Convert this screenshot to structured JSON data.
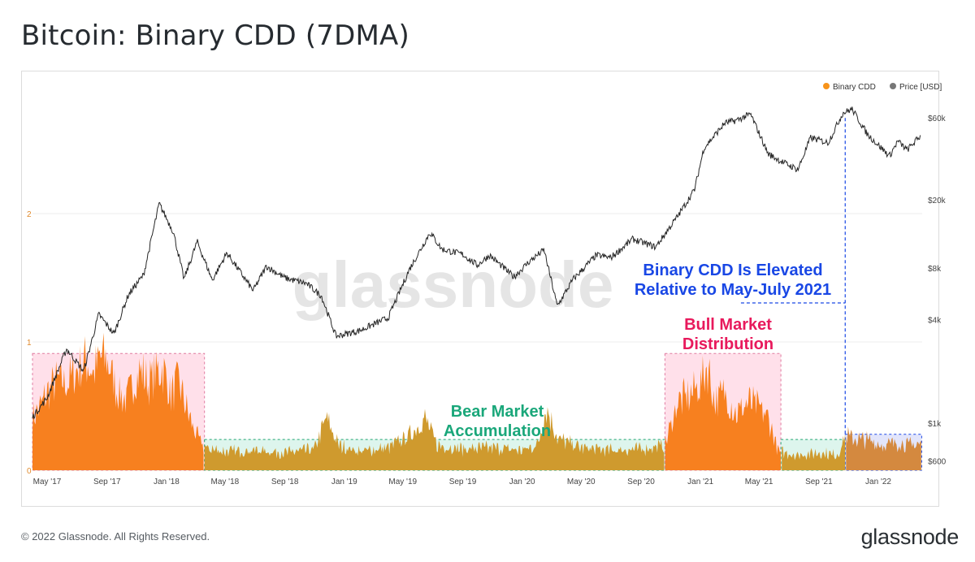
{
  "page": {
    "title": "Bitcoin: Binary CDD (7DMA)",
    "copyright": "© 2022 Glassnode. All Rights Reserved.",
    "brand": "glassnode"
  },
  "chart_data": {
    "type": "area",
    "title": "Bitcoin: Binary CDD (7DMA)",
    "legend": {
      "placement": "top-right",
      "entries": [
        {
          "name": "Binary CDD",
          "color": "#f7931a"
        },
        {
          "name": "Price [USD]",
          "color": "#777777"
        }
      ]
    },
    "grid": true,
    "x_range": [
      "2017-04-01",
      "2022-04-01"
    ],
    "x_ticks": [
      {
        "label": "May '17",
        "date": "2017-05-01"
      },
      {
        "label": "Sep '17",
        "date": "2017-09-01"
      },
      {
        "label": "Jan '18",
        "date": "2018-01-01"
      },
      {
        "label": "May '18",
        "date": "2018-05-01"
      },
      {
        "label": "Sep '18",
        "date": "2018-09-01"
      },
      {
        "label": "Jan '19",
        "date": "2019-01-01"
      },
      {
        "label": "May '19",
        "date": "2019-05-01"
      },
      {
        "label": "Sep '19",
        "date": "2019-09-01"
      },
      {
        "label": "Jan '20",
        "date": "2020-01-01"
      },
      {
        "label": "May '20",
        "date": "2020-05-01"
      },
      {
        "label": "Sep '20",
        "date": "2020-09-01"
      },
      {
        "label": "Jan '21",
        "date": "2021-01-01"
      },
      {
        "label": "May '21",
        "date": "2021-05-01"
      },
      {
        "label": "Sep '21",
        "date": "2021-09-01"
      },
      {
        "label": "Jan '22",
        "date": "2022-01-01"
      }
    ],
    "y_left": {
      "range": [
        0,
        2
      ],
      "ticks": [
        "0",
        "1",
        "2"
      ],
      "color": "#e0892b"
    },
    "y_right": {
      "scale": "log",
      "range": [
        530,
        90000
      ],
      "ticks": [
        {
          "label": "$600",
          "value": 600
        },
        {
          "label": "$1k",
          "value": 1000
        },
        {
          "label": "$4k",
          "value": 4000
        },
        {
          "label": "$8k",
          "value": 8000
        },
        {
          "label": "$20k",
          "value": 20000
        },
        {
          "label": "$60k",
          "value": 60000
        }
      ]
    },
    "series": [
      {
        "name": "Binary CDD",
        "color": "#f7931a",
        "axis": "left",
        "values": [
          [
            "2017-04-01",
            0.42
          ],
          [
            "2017-04-15",
            0.5
          ],
          [
            "2017-05-01",
            0.62
          ],
          [
            "2017-05-20",
            0.72
          ],
          [
            "2017-06-10",
            0.7
          ],
          [
            "2017-07-01",
            0.8
          ],
          [
            "2017-07-20",
            0.88
          ],
          [
            "2017-08-05",
            0.78
          ],
          [
            "2017-08-20",
            0.92
          ],
          [
            "2017-09-05",
            0.85
          ],
          [
            "2017-09-20",
            0.65
          ],
          [
            "2017-10-10",
            0.55
          ],
          [
            "2017-10-25",
            0.72
          ],
          [
            "2017-11-10",
            0.8
          ],
          [
            "2017-11-25",
            0.7
          ],
          [
            "2017-12-10",
            0.78
          ],
          [
            "2017-12-25",
            0.82
          ],
          [
            "2018-01-10",
            0.6
          ],
          [
            "2018-01-25",
            0.72
          ],
          [
            "2018-02-15",
            0.45
          ],
          [
            "2018-03-01",
            0.3
          ],
          [
            "2018-03-20",
            0.18
          ],
          [
            "2018-05-01",
            0.15
          ],
          [
            "2018-07-01",
            0.16
          ],
          [
            "2018-09-01",
            0.14
          ],
          [
            "2018-11-01",
            0.17
          ],
          [
            "2018-11-25",
            0.42
          ],
          [
            "2018-12-20",
            0.2
          ],
          [
            "2019-02-01",
            0.15
          ],
          [
            "2019-04-01",
            0.18
          ],
          [
            "2019-05-15",
            0.28
          ],
          [
            "2019-06-15",
            0.42
          ],
          [
            "2019-07-10",
            0.2
          ],
          [
            "2019-09-01",
            0.17
          ],
          [
            "2019-11-01",
            0.18
          ],
          [
            "2020-01-01",
            0.16
          ],
          [
            "2020-02-01",
            0.2
          ],
          [
            "2020-02-20",
            0.5
          ],
          [
            "2020-03-15",
            0.25
          ],
          [
            "2020-05-01",
            0.18
          ],
          [
            "2020-07-01",
            0.16
          ],
          [
            "2020-09-01",
            0.17
          ],
          [
            "2020-10-20",
            0.2
          ],
          [
            "2020-11-15",
            0.55
          ],
          [
            "2020-12-10",
            0.6
          ],
          [
            "2021-01-05",
            0.72
          ],
          [
            "2021-01-15",
            0.85
          ],
          [
            "2021-01-30",
            0.55
          ],
          [
            "2021-02-20",
            0.62
          ],
          [
            "2021-03-15",
            0.45
          ],
          [
            "2021-04-10",
            0.55
          ],
          [
            "2021-05-01",
            0.5
          ],
          [
            "2021-05-20",
            0.42
          ],
          [
            "2021-06-10",
            0.15
          ],
          [
            "2021-07-20",
            0.12
          ],
          [
            "2021-09-01",
            0.14
          ],
          [
            "2021-10-10",
            0.12
          ],
          [
            "2021-10-25",
            0.28
          ],
          [
            "2021-11-15",
            0.25
          ],
          [
            "2021-12-10",
            0.24
          ],
          [
            "2022-01-10",
            0.2
          ],
          [
            "2022-02-10",
            0.22
          ],
          [
            "2022-03-10",
            0.2
          ],
          [
            "2022-04-01",
            0.22
          ]
        ]
      },
      {
        "name": "Price [USD]",
        "color": "#262626",
        "axis": "right",
        "values": [
          [
            "2017-04-01",
            1080
          ],
          [
            "2017-05-01",
            1400
          ],
          [
            "2017-06-10",
            2700
          ],
          [
            "2017-07-15",
            2000
          ],
          [
            "2017-08-15",
            4300
          ],
          [
            "2017-09-15",
            3300
          ],
          [
            "2017-10-15",
            5600
          ],
          [
            "2017-11-15",
            7300
          ],
          [
            "2017-12-17",
            19000
          ],
          [
            "2018-01-15",
            13000
          ],
          [
            "2018-02-06",
            6900
          ],
          [
            "2018-03-05",
            11400
          ],
          [
            "2018-04-05",
            6800
          ],
          [
            "2018-05-05",
            9800
          ],
          [
            "2018-06-28",
            5900
          ],
          [
            "2018-07-25",
            8200
          ],
          [
            "2018-09-01",
            7000
          ],
          [
            "2018-10-15",
            6500
          ],
          [
            "2018-11-15",
            5500
          ],
          [
            "2018-12-15",
            3200
          ],
          [
            "2019-02-01",
            3450
          ],
          [
            "2019-04-01",
            4100
          ],
          [
            "2019-05-15",
            7900
          ],
          [
            "2019-06-26",
            12900
          ],
          [
            "2019-07-20",
            10300
          ],
          [
            "2019-09-01",
            9600
          ],
          [
            "2019-10-01",
            8300
          ],
          [
            "2019-10-26",
            9500
          ],
          [
            "2019-12-15",
            7100
          ],
          [
            "2020-01-15",
            8700
          ],
          [
            "2020-02-15",
            10200
          ],
          [
            "2020-03-13",
            4800
          ],
          [
            "2020-04-15",
            6900
          ],
          [
            "2020-06-01",
            9500
          ],
          [
            "2020-07-01",
            9200
          ],
          [
            "2020-08-15",
            11800
          ],
          [
            "2020-10-01",
            10600
          ],
          [
            "2020-11-15",
            16000
          ],
          [
            "2020-12-20",
            23000
          ],
          [
            "2021-01-08",
            40000
          ],
          [
            "2021-02-20",
            56000
          ],
          [
            "2021-03-15",
            58000
          ],
          [
            "2021-04-14",
            63000
          ],
          [
            "2021-05-20",
            37000
          ],
          [
            "2021-06-20",
            33000
          ],
          [
            "2021-07-20",
            30000
          ],
          [
            "2021-08-15",
            46000
          ],
          [
            "2021-09-20",
            43000
          ],
          [
            "2021-10-20",
            64000
          ],
          [
            "2021-11-08",
            67500
          ],
          [
            "2021-12-10",
            48000
          ],
          [
            "2022-01-24",
            36000
          ],
          [
            "2022-02-10",
            44000
          ],
          [
            "2022-03-01",
            39000
          ],
          [
            "2022-03-28",
            47000
          ]
        ]
      }
    ],
    "annotations": [
      {
        "text": "Bear Market\nAccumulation",
        "color": "#1aa77a"
      },
      {
        "text": "Bull Market\nDistribution",
        "color": "#e8195c"
      },
      {
        "text": "Binary CDD Is Elevated\nRelative to May-July 2021",
        "color": "#1947e5"
      }
    ],
    "watermark": "glassnode"
  }
}
